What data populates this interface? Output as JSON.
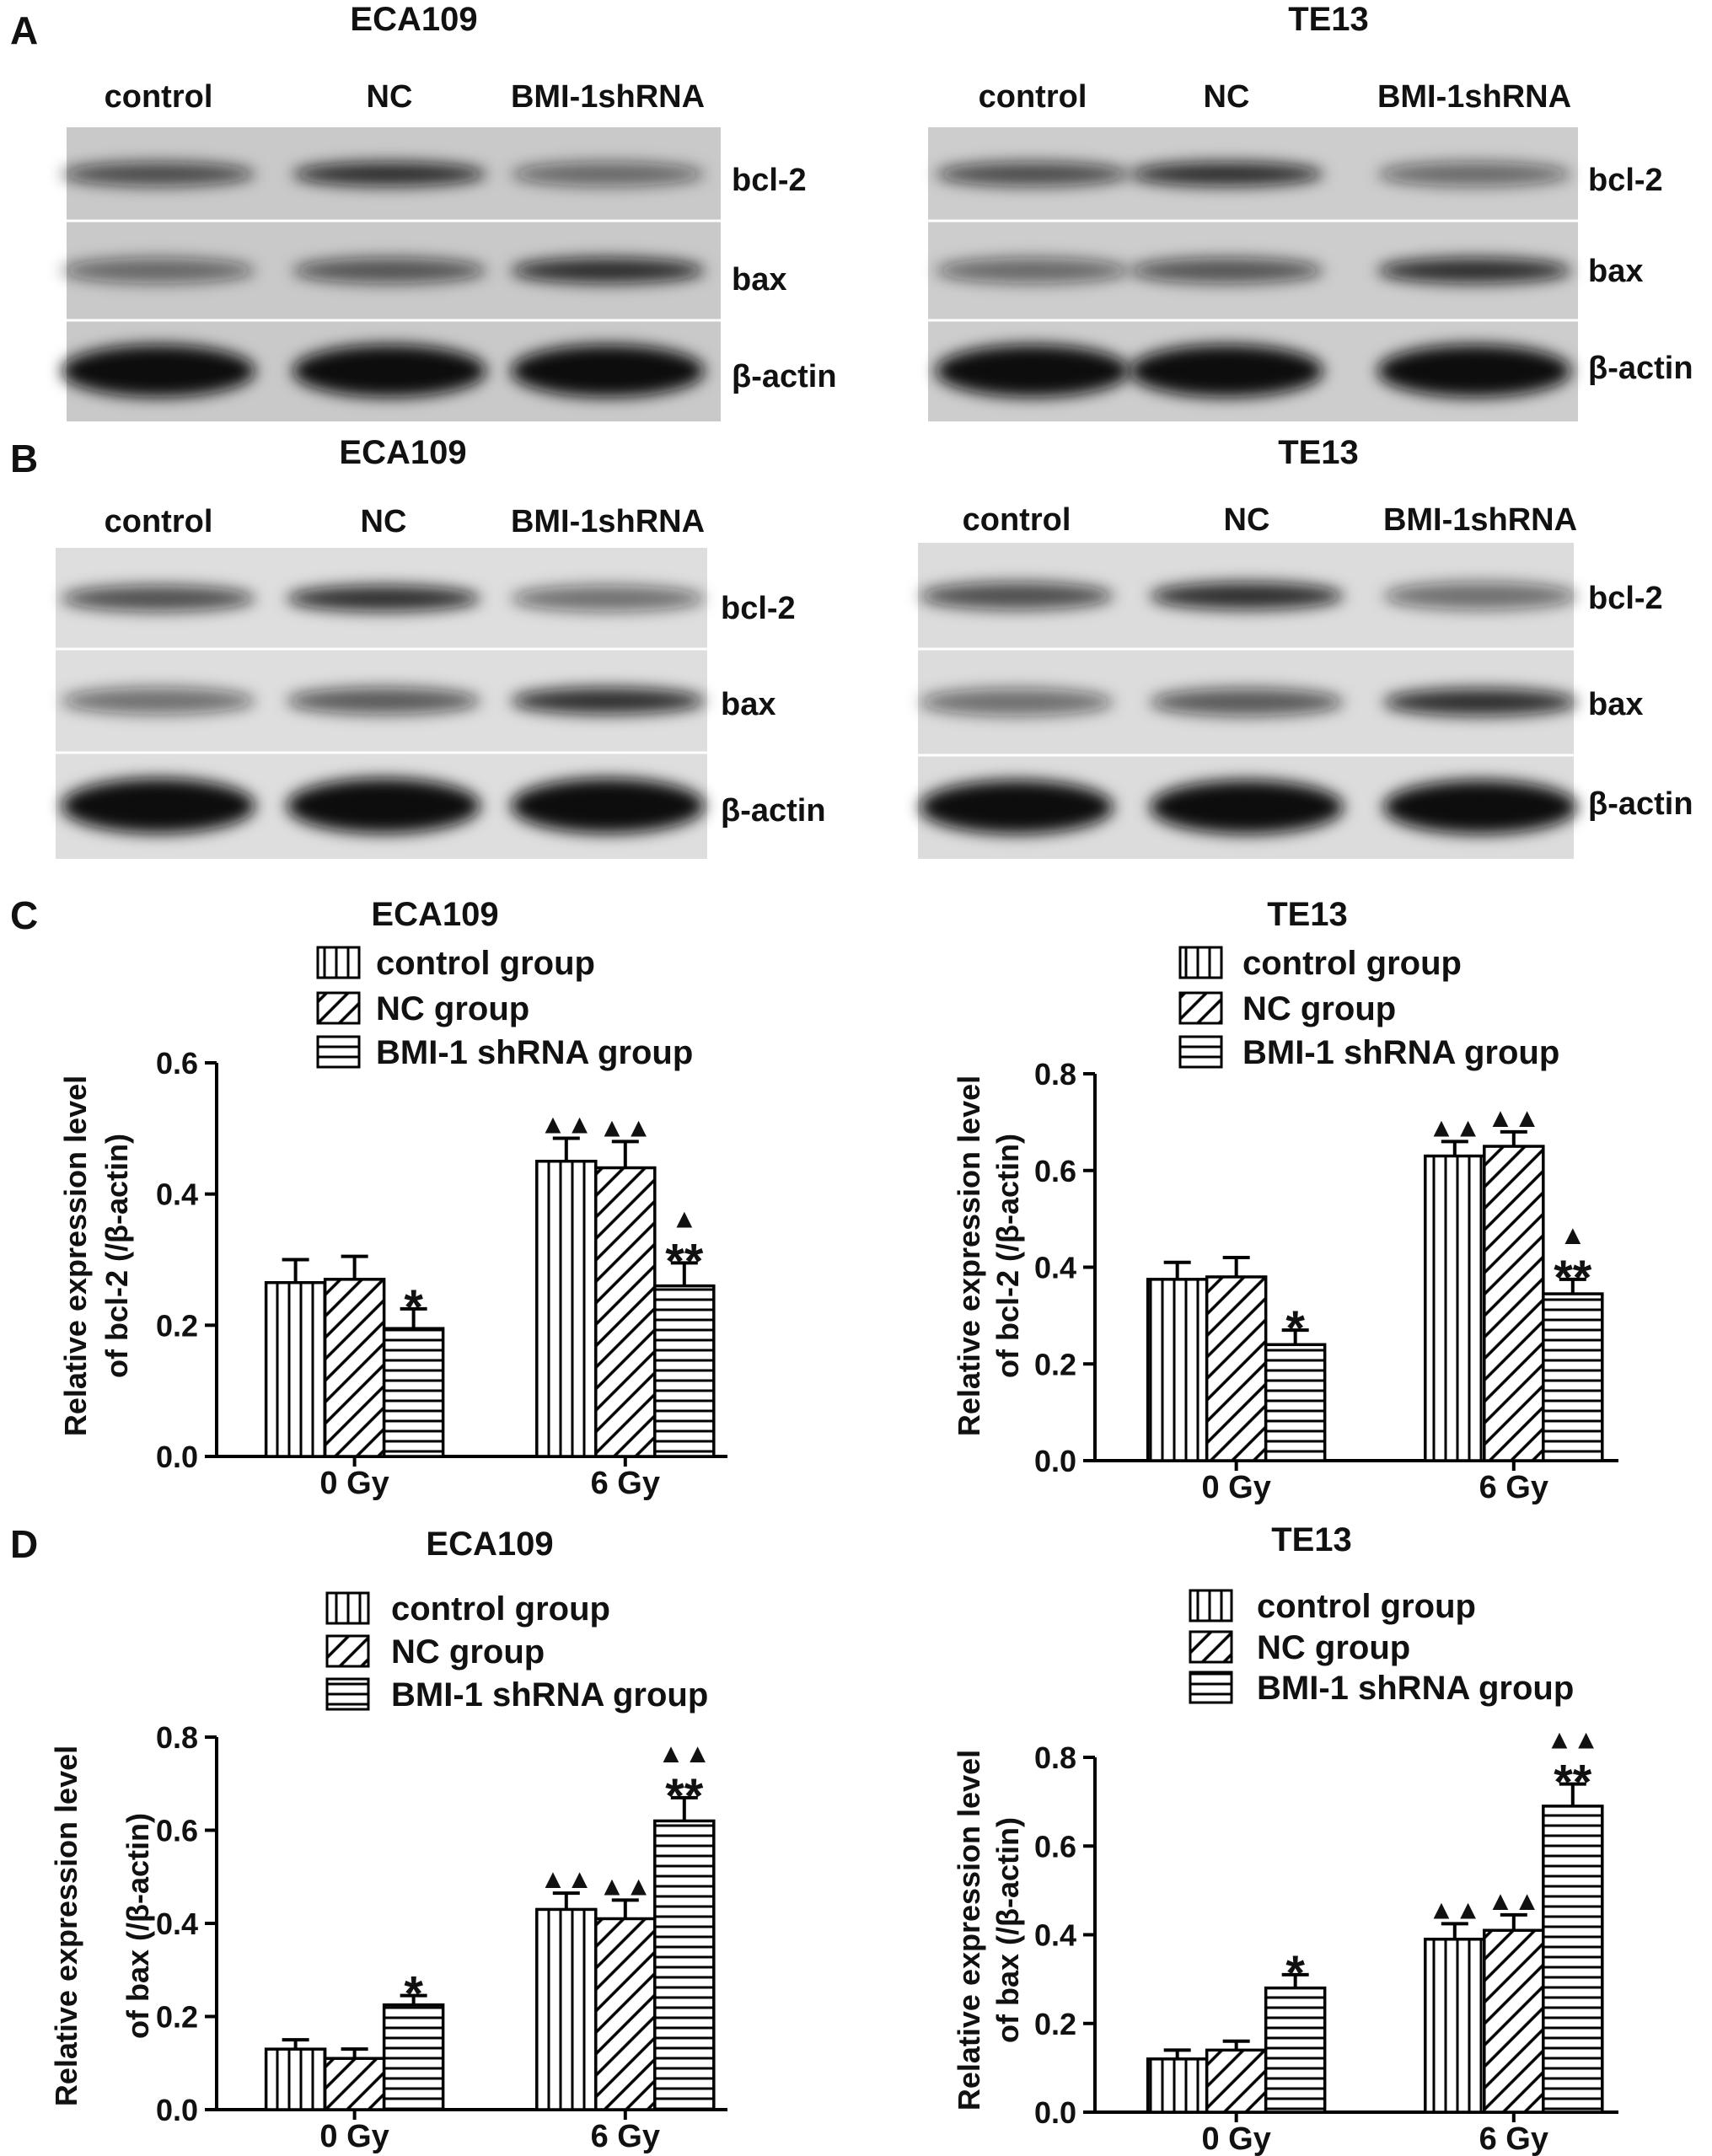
{
  "panel_labels": [
    "A",
    "B",
    "C",
    "D"
  ],
  "blots": [
    {
      "title": "ECA109",
      "lanes": [
        "control",
        "NC",
        "BMI-1shRNA"
      ],
      "rows": [
        "bcl-2",
        "bax",
        "β-actin"
      ]
    },
    {
      "title": "TE13",
      "lanes": [
        "control",
        "NC",
        "BMI-1shRNA"
      ],
      "rows": [
        "bcl-2",
        "bax",
        "β-actin"
      ]
    },
    {
      "title": "ECA109",
      "lanes": [
        "control",
        "NC",
        "BMI-1shRNA"
      ],
      "rows": [
        "bcl-2",
        "bax",
        "β-actin"
      ]
    },
    {
      "title": "TE13",
      "lanes": [
        "control",
        "NC",
        "BMI-1shRNA"
      ],
      "rows": [
        "bcl-2",
        "bax",
        "β-actin"
      ]
    }
  ],
  "chart_data": [
    {
      "type": "bar",
      "title": "ECA109",
      "y_label": [
        "Relative expression level",
        "of  bcl-2  (/β-actin)"
      ],
      "categories": [
        "0 Gy",
        "6 Gy"
      ],
      "ylim": [
        0,
        0.6
      ],
      "yticks": [
        {
          "value": 0,
          "label": "0.0"
        },
        0.2,
        0.4,
        0.6
      ],
      "series": [
        {
          "name": "control group",
          "color": "#000000",
          "pattern": "vertical",
          "values": [
            0.265,
            0.45
          ],
          "errors": [
            0.035,
            0.035
          ],
          "annotations": [
            null,
            [
              "▲▲"
            ]
          ]
        },
        {
          "name": "NC group",
          "color": "#000000",
          "pattern": "diagonal",
          "values": [
            0.27,
            0.44
          ],
          "errors": [
            0.035,
            0.04
          ],
          "annotations": [
            null,
            [
              "▲▲"
            ]
          ]
        },
        {
          "name": "BMI-1 shRNA group",
          "color": "#000000",
          "pattern": "horizontal",
          "values": [
            0.195,
            0.26
          ],
          "errors": [
            0.03,
            0.035
          ],
          "annotations": [
            [
              "*"
            ],
            [
              "▲",
              "**"
            ]
          ]
        }
      ]
    },
    {
      "type": "bar",
      "title": "TE13",
      "y_label": [
        "Relative expression level",
        "of  bcl-2  (/β-actin)"
      ],
      "categories": [
        "0 Gy",
        "6 Gy"
      ],
      "ylim": [
        0,
        0.8
      ],
      "yticks": [
        {
          "value": 0,
          "label": "0.0"
        },
        0.2,
        0.4,
        0.6,
        0.8
      ],
      "series": [
        {
          "name": "control group",
          "color": "#000000",
          "pattern": "vertical",
          "values": [
            0.375,
            0.63
          ],
          "errors": [
            0.035,
            0.03
          ],
          "annotations": [
            null,
            [
              "▲▲"
            ]
          ]
        },
        {
          "name": "NC group",
          "color": "#000000",
          "pattern": "diagonal",
          "values": [
            0.38,
            0.65
          ],
          "errors": [
            0.04,
            0.03
          ],
          "annotations": [
            null,
            [
              "▲▲"
            ]
          ]
        },
        {
          "name": "BMI-1 shRNA group",
          "color": "#000000",
          "pattern": "horizontal",
          "values": [
            0.24,
            0.345
          ],
          "errors": [
            0.03,
            0.03
          ],
          "annotations": [
            [
              "*"
            ],
            [
              "▲",
              "**"
            ]
          ]
        }
      ]
    },
    {
      "type": "bar",
      "title": "ECA109",
      "y_label": [
        "Relative expression level",
        "of bax (/β-actin)"
      ],
      "categories": [
        "0 Gy",
        "6 Gy"
      ],
      "ylim": [
        0,
        0.8
      ],
      "yticks": [
        {
          "value": 0,
          "label": "0.0"
        },
        0.2,
        0.4,
        0.6,
        0.8
      ],
      "series": [
        {
          "name": "control group",
          "color": "#000000",
          "pattern": "vertical",
          "values": [
            0.13,
            0.43
          ],
          "errors": [
            0.02,
            0.035
          ],
          "annotations": [
            null,
            [
              "▲▲"
            ]
          ]
        },
        {
          "name": "NC group",
          "color": "#000000",
          "pattern": "diagonal",
          "values": [
            0.11,
            0.41
          ],
          "errors": [
            0.02,
            0.04
          ],
          "annotations": [
            null,
            [
              "▲▲"
            ]
          ]
        },
        {
          "name": "BMI-1 shRNA group",
          "color": "#000000",
          "pattern": "horizontal",
          "values": [
            0.225,
            0.62
          ],
          "errors": [
            0.02,
            0.05
          ],
          "annotations": [
            [
              "*"
            ],
            [
              "▲▲",
              "**"
            ]
          ]
        }
      ]
    },
    {
      "type": "bar",
      "title": "TE13",
      "y_label": [
        "Relative expression level",
        "of bax (/β-actin)"
      ],
      "categories": [
        "0 Gy",
        "6 Gy"
      ],
      "ylim": [
        0,
        0.8
      ],
      "yticks": [
        {
          "value": 0,
          "label": "0.0"
        },
        0.2,
        0.4,
        0.6,
        0.8
      ],
      "series": [
        {
          "name": "control group",
          "color": "#000000",
          "pattern": "vertical",
          "values": [
            0.12,
            0.39
          ],
          "errors": [
            0.02,
            0.035
          ],
          "annotations": [
            null,
            [
              "▲▲"
            ]
          ]
        },
        {
          "name": "NC  group",
          "color": "#000000",
          "pattern": "diagonal",
          "values": [
            0.14,
            0.41
          ],
          "errors": [
            0.02,
            0.035
          ],
          "annotations": [
            null,
            [
              "▲▲"
            ]
          ]
        },
        {
          "name": "BMI-1 shRNA group",
          "color": "#000000",
          "pattern": "horizontal",
          "values": [
            0.28,
            0.69
          ],
          "errors": [
            0.03,
            0.05
          ],
          "annotations": [
            [
              "*"
            ],
            [
              "▲▲",
              "**"
            ]
          ]
        }
      ]
    }
  ]
}
